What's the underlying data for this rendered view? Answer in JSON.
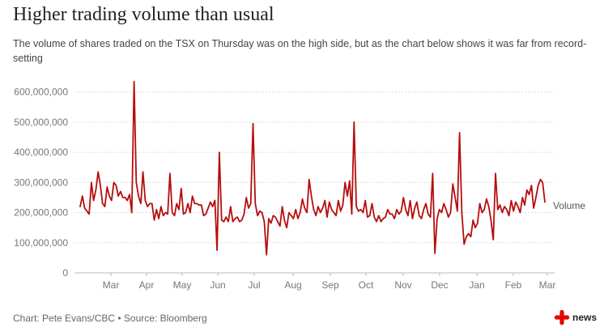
{
  "title": "Higher trading volume than usual",
  "subtitle": "The volume of shares traded on the TSX on Thursday was on the high side, but as the chart below shows it was far from record-setting",
  "footer": "Chart: Pete Evans/CBC • Source: Bloomberg",
  "logo": {
    "text": "news",
    "icon": "cbc-gem-icon",
    "color": "#e60505"
  },
  "chart_data": {
    "type": "line",
    "series": [
      {
        "name": "Volume",
        "color": "#b50e0e",
        "values": [
          220000000,
          255000000,
          215000000,
          205000000,
          195000000,
          300000000,
          240000000,
          275000000,
          335000000,
          290000000,
          230000000,
          220000000,
          285000000,
          255000000,
          240000000,
          300000000,
          290000000,
          255000000,
          270000000,
          250000000,
          250000000,
          240000000,
          260000000,
          200000000,
          635000000,
          300000000,
          255000000,
          230000000,
          335000000,
          240000000,
          220000000,
          230000000,
          230000000,
          175000000,
          210000000,
          180000000,
          220000000,
          190000000,
          200000000,
          195000000,
          330000000,
          200000000,
          190000000,
          230000000,
          210000000,
          280000000,
          195000000,
          200000000,
          230000000,
          200000000,
          255000000,
          230000000,
          230000000,
          225000000,
          225000000,
          190000000,
          195000000,
          215000000,
          235000000,
          220000000,
          240000000,
          75000000,
          400000000,
          175000000,
          170000000,
          185000000,
          170000000,
          220000000,
          170000000,
          180000000,
          185000000,
          170000000,
          175000000,
          195000000,
          250000000,
          215000000,
          230000000,
          495000000,
          230000000,
          190000000,
          205000000,
          200000000,
          170000000,
          60000000,
          180000000,
          165000000,
          190000000,
          185000000,
          170000000,
          155000000,
          220000000,
          175000000,
          150000000,
          200000000,
          190000000,
          180000000,
          210000000,
          180000000,
          200000000,
          245000000,
          215000000,
          200000000,
          310000000,
          255000000,
          210000000,
          190000000,
          220000000,
          200000000,
          215000000,
          240000000,
          185000000,
          235000000,
          210000000,
          200000000,
          190000000,
          240000000,
          205000000,
          225000000,
          300000000,
          255000000,
          305000000,
          195000000,
          500000000,
          220000000,
          205000000,
          210000000,
          200000000,
          240000000,
          185000000,
          190000000,
          230000000,
          185000000,
          170000000,
          190000000,
          170000000,
          180000000,
          185000000,
          210000000,
          195000000,
          195000000,
          180000000,
          210000000,
          195000000,
          205000000,
          250000000,
          210000000,
          190000000,
          240000000,
          180000000,
          215000000,
          235000000,
          190000000,
          180000000,
          210000000,
          230000000,
          195000000,
          185000000,
          330000000,
          65000000,
          180000000,
          210000000,
          200000000,
          230000000,
          210000000,
          185000000,
          200000000,
          295000000,
          250000000,
          205000000,
          465000000,
          200000000,
          95000000,
          120000000,
          130000000,
          120000000,
          175000000,
          150000000,
          165000000,
          230000000,
          200000000,
          210000000,
          245000000,
          220000000,
          175000000,
          110000000,
          330000000,
          210000000,
          225000000,
          200000000,
          220000000,
          210000000,
          190000000,
          240000000,
          205000000,
          235000000,
          220000000,
          200000000,
          250000000,
          225000000,
          275000000,
          260000000,
          290000000,
          215000000,
          250000000,
          290000000,
          310000000,
          300000000,
          235000000
        ]
      }
    ],
    "x_ticks": [
      "Mar",
      "Apr",
      "May",
      "Jun",
      "Jul",
      "Aug",
      "Sep",
      "Oct",
      "Nov",
      "Dec",
      "Jan",
      "Feb",
      "Mar"
    ],
    "y_ticks": [
      "600,000,000",
      "500,000,000",
      "400,000,000",
      "300,000,000",
      "200,000,000",
      "100,000,000",
      "0"
    ],
    "ylim": [
      0,
      650000000
    ],
    "grid": "horizontal-dashed",
    "legend": "right-inline-label"
  }
}
